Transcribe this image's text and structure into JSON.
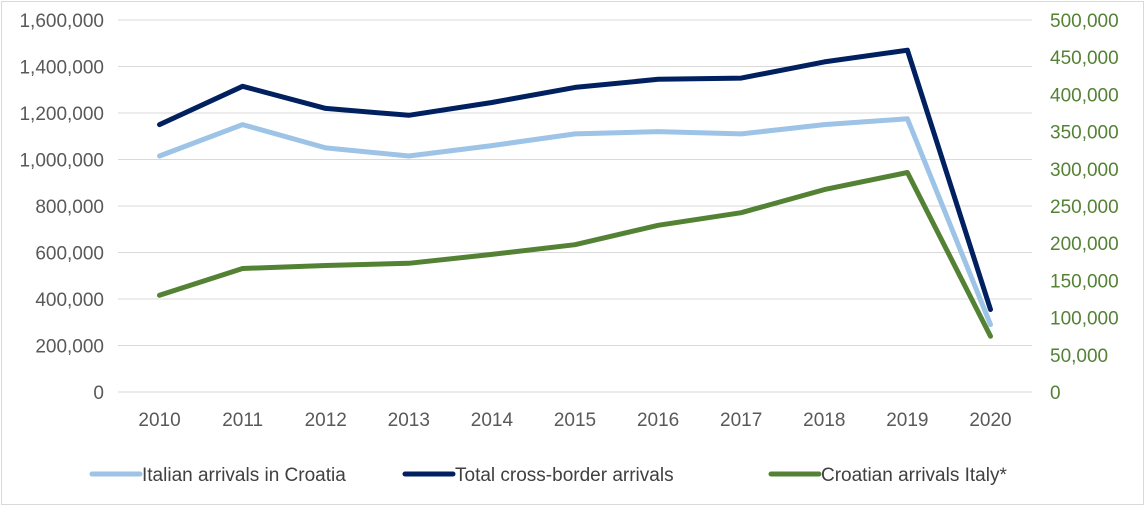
{
  "chart_data": {
    "type": "line",
    "title": "",
    "categories": [
      "2010",
      "2011",
      "2012",
      "2013",
      "2014",
      "2015",
      "2016",
      "2017",
      "2018",
      "2019",
      "2020"
    ],
    "y_left": {
      "min": 0,
      "max": 1600000,
      "ticks": [
        "0",
        "200,000",
        "400,000",
        "600,000",
        "800,000",
        "1,000,000",
        "1,200,000",
        "1,400,000",
        "1,600,000"
      ]
    },
    "y_right": {
      "min": 0,
      "max": 500000,
      "ticks": [
        "0",
        "50,000",
        "100,000",
        "150,000",
        "200,000",
        "250,000",
        "300,000",
        "350,000",
        "400,000",
        "450,000",
        "500,000"
      ]
    },
    "grid": true,
    "legend_position": "bottom",
    "series": [
      {
        "name": "Italian arrivals in Croatia",
        "axis": "left",
        "color": "#9dc3e6",
        "values": [
          1015000,
          1150000,
          1050000,
          1015000,
          1060000,
          1110000,
          1120000,
          1110000,
          1150000,
          1175000,
          290000
        ]
      },
      {
        "name": "Total cross-border arrivals",
        "axis": "left",
        "color": "#002060",
        "values": [
          1150000,
          1315000,
          1220000,
          1190000,
          1245000,
          1310000,
          1345000,
          1350000,
          1420000,
          1470000,
          355000
        ]
      },
      {
        "name": "Croatian arrivals  Italy*",
        "axis": "right",
        "color": "#548235",
        "values": [
          130000,
          166000,
          170000,
          173000,
          185000,
          198000,
          224000,
          241000,
          272000,
          295000,
          75000
        ]
      }
    ]
  }
}
